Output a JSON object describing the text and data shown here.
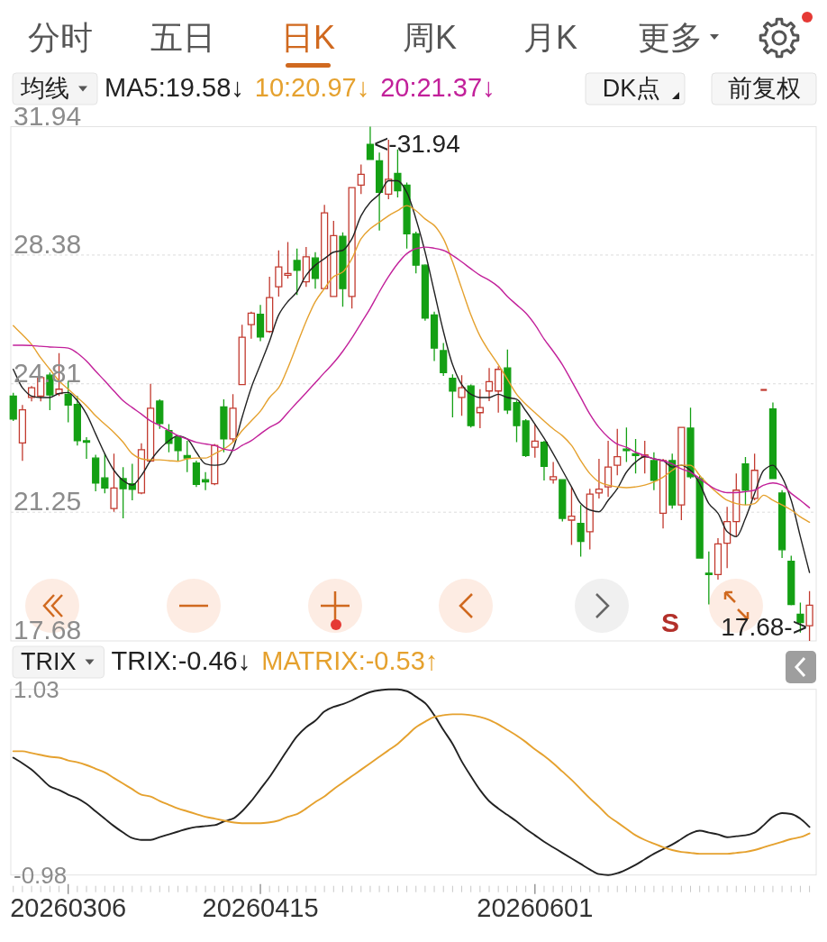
{
  "chart_data": [
    {
      "type": "candlestick",
      "categories": [
        null,
        null,
        null,
        null,
        null,
        null,
        null,
        null,
        null,
        null,
        null,
        null,
        null,
        null,
        null,
        null,
        null,
        null,
        null,
        null,
        null,
        null,
        null,
        null,
        null,
        null,
        null,
        null,
        null,
        null,
        null,
        null,
        null,
        null,
        null,
        null,
        null,
        null,
        null,
        null,
        null,
        null,
        null,
        null,
        null,
        null,
        null,
        null,
        null,
        null,
        null,
        null,
        null,
        null,
        null,
        null,
        null,
        null,
        null,
        null,
        null,
        null,
        null,
        null,
        null,
        null,
        null,
        null,
        null,
        null,
        null,
        null,
        null,
        null,
        null,
        null,
        null,
        null,
        null,
        null,
        null,
        null,
        null,
        null,
        null,
        null,
        null,
        null
      ],
      "ohlc": [
        [
          24.47,
          24.56,
          23.78,
          23.83
        ],
        [
          23.17,
          24.22,
          22.67,
          24.09
        ],
        [
          24.43,
          24.75,
          24.32,
          24.7
        ],
        [
          24.47,
          25.02,
          24.32,
          24.98
        ],
        [
          25.05,
          25.12,
          24.08,
          24.5
        ],
        [
          24.54,
          25.66,
          24.47,
          24.66
        ],
        [
          24.52,
          24.89,
          23.74,
          24.22
        ],
        [
          24.24,
          24.47,
          23.1,
          23.23
        ],
        [
          23.23,
          23.33,
          22.73,
          23.19
        ],
        [
          22.75,
          22.84,
          21.83,
          22.06
        ],
        [
          22.2,
          22.87,
          21.77,
          21.92
        ],
        [
          21.35,
          22.87,
          21.26,
          21.92
        ],
        [
          22.18,
          22.5,
          21.08,
          21.9
        ],
        [
          22.04,
          22.59,
          21.58,
          21.88
        ],
        [
          21.78,
          23.16,
          21.75,
          22.98
        ],
        [
          22.67,
          24.81,
          22.67,
          24.13
        ],
        [
          24.33,
          24.38,
          23.56,
          23.71
        ],
        [
          23.51,
          23.69,
          22.91,
          23.16
        ],
        [
          23.33,
          23.37,
          22.67,
          22.96
        ],
        [
          22.82,
          23.23,
          22.36,
          22.75
        ],
        [
          22.61,
          22.68,
          21.95,
          22.02
        ],
        [
          22.15,
          22.36,
          21.86,
          22.09
        ],
        [
          22.04,
          23.14,
          22.0,
          23.1
        ],
        [
          24.17,
          24.38,
          22.91,
          23.28
        ],
        [
          23.28,
          24.52,
          23.19,
          24.13
        ],
        [
          24.79,
          26.45,
          24.79,
          26.1
        ],
        [
          26.45,
          26.81,
          26.06,
          26.77
        ],
        [
          26.74,
          27.0,
          25.99,
          26.11
        ],
        [
          26.26,
          27.78,
          26.22,
          27.2
        ],
        [
          27.5,
          28.51,
          27.23,
          28.05
        ],
        [
          27.82,
          28.74,
          27.73,
          27.87
        ],
        [
          28.23,
          28.56,
          27.27,
          27.96
        ],
        [
          27.64,
          28.6,
          27.5,
          28.33
        ],
        [
          28.3,
          28.46,
          27.45,
          27.73
        ],
        [
          27.45,
          29.77,
          27.45,
          29.55
        ],
        [
          27.23,
          29.33,
          27.23,
          28.92
        ],
        [
          28.9,
          29.01,
          26.95,
          27.45
        ],
        [
          27.23,
          30.25,
          26.9,
          30.25
        ],
        [
          30.32,
          30.89,
          30.07,
          30.62
        ],
        [
          31.45,
          31.94,
          31.03,
          31.03
        ],
        [
          30.99,
          31.22,
          29.06,
          30.12
        ],
        [
          30.07,
          31.58,
          29.93,
          30.48
        ],
        [
          30.64,
          31.31,
          29.98,
          30.16
        ],
        [
          30.32,
          30.39,
          28.56,
          28.97
        ],
        [
          28.97,
          29.03,
          27.87,
          28.1
        ],
        [
          28.1,
          28.12,
          26.56,
          26.63
        ],
        [
          26.72,
          26.81,
          25.44,
          25.8
        ],
        [
          25.73,
          25.94,
          25.03,
          25.12
        ],
        [
          24.96,
          25.07,
          23.88,
          24.61
        ],
        [
          24.43,
          25.05,
          23.92,
          24.7
        ],
        [
          24.75,
          24.79,
          23.6,
          23.65
        ],
        [
          24.01,
          24.66,
          23.58,
          24.15
        ],
        [
          24.61,
          25.25,
          24.33,
          24.87
        ],
        [
          24.61,
          25.3,
          24.01,
          25.21
        ],
        [
          25.25,
          25.76,
          23.97,
          24.08
        ],
        [
          24.29,
          24.35,
          23.19,
          23.65
        ],
        [
          23.78,
          23.83,
          22.78,
          22.82
        ],
        [
          23.05,
          23.69,
          22.76,
          23.22
        ],
        [
          23.19,
          23.23,
          22.13,
          22.52
        ],
        [
          22.15,
          22.64,
          22.04,
          22.23
        ],
        [
          22.15,
          22.15,
          20.99,
          21.08
        ],
        [
          21.03,
          21.95,
          20.34,
          21.14
        ],
        [
          20.94,
          21.45,
          20.02,
          20.44
        ],
        [
          20.71,
          21.9,
          20.22,
          21.75
        ],
        [
          21.78,
          22.73,
          21.63,
          21.89
        ],
        [
          21.95,
          23.23,
          21.67,
          22.5
        ],
        [
          22.55,
          23.56,
          22.27,
          22.79
        ],
        [
          23.0,
          23.6,
          22.64,
          22.96
        ],
        [
          22.87,
          23.28,
          22.32,
          22.82
        ],
        [
          22.78,
          23.23,
          22.32,
          22.84
        ],
        [
          22.68,
          22.91,
          21.86,
          22.13
        ],
        [
          21.22,
          22.73,
          20.8,
          22.68
        ],
        [
          22.68,
          22.87,
          21.35,
          21.45
        ],
        [
          21.45,
          23.6,
          21.03,
          23.6
        ],
        [
          23.58,
          24.15,
          22.18,
          22.23
        ],
        [
          22.18,
          22.27,
          19.98,
          19.98
        ],
        [
          19.56,
          20.16,
          18.69,
          19.52
        ],
        [
          19.52,
          20.53,
          19.38,
          20.37
        ],
        [
          20.39,
          21.4,
          19.7,
          20.99
        ],
        [
          20.99,
          22.32,
          20.57,
          21.86
        ],
        [
          22.59,
          22.78,
          21.45,
          21.86
        ],
        [
          21.63,
          22.87,
          21.58,
          22.41
        ],
        [
          24.64,
          24.64,
          24.64,
          24.64
        ],
        [
          24.11,
          24.29,
          22.18,
          22.18
        ],
        [
          21.78,
          21.86,
          19.98,
          20.21
        ],
        [
          19.89,
          20.04,
          18.67,
          18.69
        ],
        [
          18.42,
          18.74,
          17.91,
          18.19
        ],
        [
          18.1,
          19.06,
          17.68,
          18.67
        ]
      ],
      "colors": [
        "#14a014",
        "#c23a2f",
        "#c23a2f",
        "#c23a2f",
        "#14a014",
        "#c23a2f",
        "#14a014",
        "#14a014",
        "#14a014",
        "#14a014",
        "#14a014",
        "#c23a2f",
        "#14a014",
        "#14a014",
        "#c23a2f",
        "#c23a2f",
        "#14a014",
        "#14a014",
        "#14a014",
        "#14a014",
        "#14a014",
        "#14a014",
        "#c23a2f",
        "#14a014",
        "#c23a2f",
        "#c23a2f",
        "#c23a2f",
        "#14a014",
        "#c23a2f",
        "#c23a2f",
        "#c23a2f",
        "#14a014",
        "#c23a2f",
        "#14a014",
        "#c23a2f",
        "#c23a2f",
        "#14a014",
        "#c23a2f",
        "#c23a2f",
        "#14a014",
        "#14a014",
        "#c23a2f",
        "#14a014",
        "#14a014",
        "#14a014",
        "#14a014",
        "#14a014",
        "#14a014",
        "#14a014",
        "#c23a2f",
        "#14a014",
        "#c23a2f",
        "#c23a2f",
        "#c23a2f",
        "#14a014",
        "#14a014",
        "#14a014",
        "#c23a2f",
        "#14a014",
        "#c23a2f",
        "#14a014",
        "#c23a2f",
        "#14a014",
        "#c23a2f",
        "#c23a2f",
        "#c23a2f",
        "#c23a2f",
        "#14a014",
        "#14a014",
        "#c23a2f",
        "#14a014",
        "#c23a2f",
        "#14a014",
        "#c23a2f",
        "#14a014",
        "#14a014",
        "#14a014",
        "#c23a2f",
        "#c23a2f",
        "#c23a2f",
        "#14a014",
        "#c23a2f",
        "#c23a2f",
        "#14a014",
        "#14a014",
        "#14a014",
        "#14a014",
        "#c23a2f"
      ],
      "series": [
        {
          "name": "MA5:19.58↓",
          "type": "line",
          "color": "#222222",
          "values": [
            25.21,
            24.7,
            24.47,
            24.43,
            24.43,
            24.54,
            24.57,
            24.34,
            23.97,
            23.42,
            22.87,
            22.41,
            22.13,
            22.0,
            22.27,
            22.68,
            23.0,
            23.23,
            23.37,
            23.28,
            22.91,
            22.59,
            22.55,
            22.59,
            23.0,
            23.88,
            24.7,
            25.34,
            25.99,
            26.72,
            27.09,
            27.36,
            27.82,
            28.1,
            28.28,
            28.46,
            28.51,
            28.83,
            29.47,
            29.84,
            30.07,
            30.44,
            30.44,
            30.12,
            29.38,
            28.46,
            27.36,
            26.26,
            25.34,
            24.79,
            24.52,
            24.43,
            24.43,
            24.52,
            24.43,
            24.38,
            24.06,
            23.69,
            23.3,
            22.87,
            22.41,
            21.95,
            21.49,
            21.31,
            21.26,
            21.58,
            21.9,
            22.36,
            22.64,
            22.79,
            22.73,
            22.68,
            22.5,
            22.55,
            22.41,
            22.04,
            21.49,
            21.22,
            20.71,
            20.57,
            21.08,
            21.77,
            22.41,
            22.55,
            22.22,
            21.58,
            20.57,
            19.58
          ]
        },
        {
          "name": "10:20.97↓",
          "type": "line",
          "color": "#e5a12e",
          "values": [
            26.42,
            26.17,
            25.9,
            25.53,
            25.21,
            24.89,
            24.66,
            24.43,
            24.2,
            23.92,
            23.69,
            23.46,
            23.19,
            22.87,
            22.73,
            22.7,
            22.7,
            22.68,
            22.66,
            22.73,
            22.75,
            22.75,
            22.87,
            23.0,
            23.19,
            23.51,
            23.78,
            24.05,
            24.43,
            24.7,
            25.25,
            25.9,
            26.54,
            27.09,
            27.45,
            27.78,
            27.91,
            28.28,
            28.83,
            29.11,
            29.29,
            29.47,
            29.61,
            29.75,
            29.61,
            29.38,
            29.2,
            28.83,
            28.19,
            27.45,
            26.72,
            26.13,
            25.71,
            25.34,
            24.93,
            24.52,
            24.24,
            24.01,
            23.78,
            23.56,
            23.37,
            23.1,
            22.68,
            22.32,
            22.09,
            22.0,
            21.95,
            21.93,
            21.95,
            22.0,
            22.09,
            22.22,
            22.41,
            22.55,
            22.55,
            22.27,
            22.0,
            21.77,
            21.58,
            21.49,
            21.45,
            21.49,
            21.72,
            21.58,
            21.45,
            21.31,
            21.12,
            20.97
          ]
        },
        {
          "name": "20:21.37↓",
          "type": "line",
          "color": "#c2209a",
          "values": [
            25.88,
            25.88,
            25.87,
            25.85,
            25.83,
            25.82,
            25.8,
            25.66,
            25.44,
            25.16,
            24.89,
            24.61,
            24.34,
            24.15,
            23.97,
            23.78,
            23.65,
            23.51,
            23.37,
            23.28,
            23.19,
            23.14,
            23.1,
            23.0,
            22.96,
            23.1,
            23.23,
            23.42,
            23.6,
            23.74,
            24.01,
            24.29,
            24.56,
            24.84,
            25.12,
            25.39,
            25.71,
            26.08,
            26.49,
            26.9,
            27.36,
            27.78,
            28.14,
            28.42,
            28.56,
            28.6,
            28.57,
            28.51,
            28.37,
            28.19,
            28.0,
            27.82,
            27.68,
            27.5,
            27.23,
            27.0,
            26.77,
            26.45,
            26.05,
            25.71,
            25.34,
            24.89,
            24.43,
            23.97,
            23.6,
            23.33,
            23.14,
            23.05,
            22.91,
            22.82,
            22.73,
            22.68,
            22.59,
            22.45,
            22.36,
            22.18,
            22.0,
            21.86,
            21.79,
            21.79,
            21.82,
            21.86,
            22.0,
            22.06,
            22.0,
            21.77,
            21.58,
            21.37
          ]
        }
      ],
      "ylim": [
        17.68,
        31.94
      ],
      "yticks": [
        31.94,
        28.38,
        24.81,
        21.25,
        17.68
      ],
      "grid": "y",
      "legend": "top",
      "legend_title": "均线",
      "tick_labels": "y",
      "annotations": [
        "分时",
        "五日",
        "日K",
        "周K",
        "月K",
        "更多",
        "DK点",
        "前复权",
        "S",
        "<-31.94",
        "17.68->"
      ]
    },
    {
      "type": "line",
      "categories": [
        null,
        null,
        null,
        null,
        null,
        null,
        "20260306",
        null,
        null,
        null,
        null,
        null,
        null,
        null,
        null,
        null,
        null,
        null,
        null,
        null,
        null,
        null,
        null,
        null,
        null,
        null,
        null,
        "20260415",
        null,
        null,
        null,
        null,
        null,
        null,
        null,
        null,
        null,
        null,
        null,
        null,
        null,
        null,
        null,
        null,
        null,
        null,
        null,
        null,
        null,
        null,
        null,
        null,
        null,
        null,
        null,
        null,
        null,
        "20260601",
        null,
        null,
        null,
        null,
        null,
        null,
        null,
        null,
        null,
        null,
        null,
        null,
        null,
        null,
        null,
        null,
        null,
        null,
        null,
        null,
        null,
        null,
        null,
        null,
        null,
        null,
        null,
        null,
        null,
        null
      ],
      "series": [
        {
          "name": "TRIX:-0.46↓",
          "color": "#222222",
          "values": [
            0.29,
            0.23,
            0.16,
            0.07,
            -0.02,
            -0.06,
            -0.11,
            -0.15,
            -0.21,
            -0.29,
            -0.37,
            -0.45,
            -0.52,
            -0.58,
            -0.6,
            -0.6,
            -0.57,
            -0.54,
            -0.51,
            -0.48,
            -0.46,
            -0.45,
            -0.44,
            -0.4,
            -0.37,
            -0.29,
            -0.18,
            -0.05,
            0.08,
            0.23,
            0.38,
            0.52,
            0.62,
            0.69,
            0.79,
            0.84,
            0.87,
            0.91,
            0.96,
            1.0,
            1.02,
            1.03,
            1.03,
            1.01,
            0.95,
            0.88,
            0.75,
            0.59,
            0.44,
            0.25,
            0.09,
            -0.06,
            -0.18,
            -0.26,
            -0.33,
            -0.4,
            -0.48,
            -0.55,
            -0.62,
            -0.68,
            -0.74,
            -0.8,
            -0.86,
            -0.92,
            -0.97,
            -0.98,
            -0.96,
            -0.92,
            -0.87,
            -0.81,
            -0.75,
            -0.7,
            -0.65,
            -0.59,
            -0.53,
            -0.5,
            -0.52,
            -0.54,
            -0.57,
            -0.56,
            -0.55,
            -0.52,
            -0.44,
            -0.35,
            -0.31,
            -0.32,
            -0.37,
            -0.46
          ]
        },
        {
          "name": "MATRIX:-0.53↑",
          "color": "#e5a12e",
          "values": [
            0.36,
            0.36,
            0.34,
            0.32,
            0.3,
            0.29,
            0.26,
            0.24,
            0.21,
            0.17,
            0.13,
            0.07,
            0.01,
            -0.05,
            -0.11,
            -0.13,
            -0.18,
            -0.22,
            -0.26,
            -0.29,
            -0.32,
            -0.35,
            -0.37,
            -0.39,
            -0.41,
            -0.42,
            -0.42,
            -0.42,
            -0.41,
            -0.39,
            -0.35,
            -0.32,
            -0.26,
            -0.19,
            -0.13,
            -0.05,
            0.02,
            0.09,
            0.16,
            0.23,
            0.3,
            0.37,
            0.44,
            0.53,
            0.62,
            0.68,
            0.73,
            0.75,
            0.76,
            0.76,
            0.75,
            0.73,
            0.7,
            0.65,
            0.59,
            0.53,
            0.46,
            0.38,
            0.31,
            0.23,
            0.14,
            0.05,
            -0.05,
            -0.15,
            -0.24,
            -0.34,
            -0.41,
            -0.48,
            -0.55,
            -0.6,
            -0.64,
            -0.68,
            -0.71,
            -0.73,
            -0.74,
            -0.75,
            -0.75,
            -0.75,
            -0.75,
            -0.74,
            -0.73,
            -0.71,
            -0.68,
            -0.65,
            -0.62,
            -0.59,
            -0.57,
            -0.53
          ]
        }
      ],
      "ylim": [
        -0.98,
        1.03
      ],
      "yticks": [
        1.03,
        -0.98
      ],
      "legend": "top",
      "legend_title": "TRIX"
    }
  ]
}
